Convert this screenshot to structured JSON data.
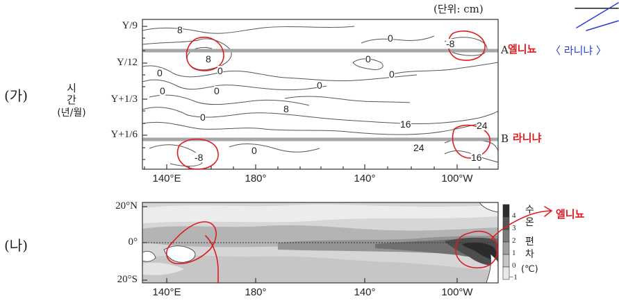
{
  "chart_data": [
    {
      "type": "contour",
      "panel_label": "(가)",
      "unit_note": "(단위: cm)",
      "ylabel": [
        "시",
        "간",
        "(년/월)"
      ],
      "x_ticks": [
        "140°E",
        "180°",
        "140°",
        "100°W"
      ],
      "y_ticks": [
        "Y/9",
        "Y/12",
        "Y+1/3",
        "Y+1/6"
      ],
      "reference_lines": [
        {
          "label": "A",
          "time": "Y/10"
        },
        {
          "label": "B",
          "time": "Y+1/6"
        }
      ],
      "contour_labels": [
        "8",
        "0",
        "-8",
        "0",
        "8",
        "0",
        "0",
        "0",
        "0",
        "0",
        "0",
        "8",
        "0",
        "16",
        "24",
        "24",
        "16",
        "-8",
        "0"
      ]
    },
    {
      "type": "heatmap",
      "panel_label": "(나)",
      "x_ticks": [
        "140°E",
        "180°",
        "140°",
        "100°W"
      ],
      "y_ticks": [
        "20°N",
        "0°",
        "20°S"
      ],
      "colorbar": {
        "title": [
          "수",
          "온",
          "편",
          "차"
        ],
        "unit": "(℃)",
        "ticks": [
          "4",
          "3",
          "2",
          "1",
          "0",
          "−1"
        ]
      }
    }
  ],
  "annotations": {
    "a_note_1": "엘니뇨",
    "a_note_2": "〈 라니냐 〉",
    "b_note": "라니냐",
    "na_note": "엘니뇨"
  }
}
